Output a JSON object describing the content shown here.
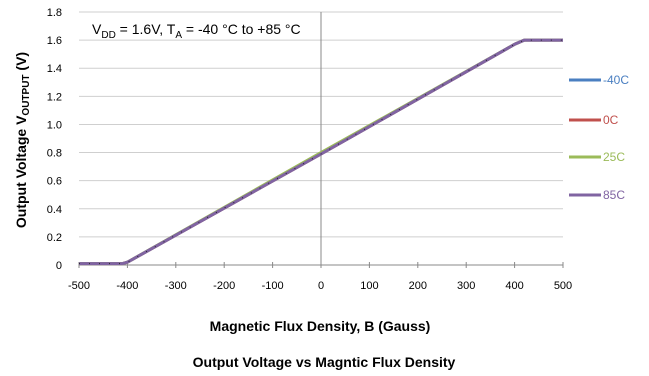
{
  "chart_data": {
    "type": "line",
    "title": "Output Voltage vs Magntic Flux Density",
    "xlabel": "Magnetic Flux Density, B (Gauss)",
    "ylabel": {
      "main": "Output Voltage V",
      "sub": "OUTPUT",
      "unit": " (V)"
    },
    "annotation": {
      "vdd_label": "V",
      "vdd_sub": "DD",
      "vdd_rest": " = 1.6V, T",
      "ta_sub": "A",
      "ta_rest": " = -40 °C to +85 °C"
    },
    "xlim": [
      -500,
      500
    ],
    "ylim": [
      0,
      1.8
    ],
    "x_ticks": [
      -500,
      -400,
      -300,
      -200,
      -100,
      0,
      100,
      200,
      300,
      400,
      500
    ],
    "y_ticks": [
      "0",
      "0.2",
      "0.4",
      "0.6",
      "0.8",
      "1.0",
      "1.2",
      "1.4",
      "1.6",
      "1.8"
    ],
    "y_tick_values": [
      0,
      0.2,
      0.4,
      0.6,
      0.8,
      1.0,
      1.2,
      1.4,
      1.6,
      1.8
    ],
    "grid": "horizontal",
    "legend_placement": "right",
    "series": [
      {
        "name": "-40C",
        "color": "#4a7fc1",
        "x": [
          -500,
          -410,
          -400,
          0,
          400,
          420,
          500
        ],
        "values": [
          0.01,
          0.01,
          0.02,
          0.79,
          1.57,
          1.6,
          1.6
        ]
      },
      {
        "name": "0C",
        "color": "#c0504d",
        "x": [
          -500,
          -410,
          -400,
          0,
          400,
          420,
          500
        ],
        "values": [
          0.01,
          0.01,
          0.02,
          0.79,
          1.57,
          1.6,
          1.6
        ]
      },
      {
        "name": "25C",
        "color": "#9bbb59",
        "x": [
          -500,
          -410,
          -400,
          0,
          400,
          420,
          500
        ],
        "values": [
          0.01,
          0.01,
          0.02,
          0.8,
          1.57,
          1.6,
          1.6
        ]
      },
      {
        "name": "85C",
        "color": "#8064a2",
        "x": [
          -500,
          -410,
          -400,
          0,
          400,
          420,
          500
        ],
        "values": [
          0.01,
          0.01,
          0.02,
          0.79,
          1.57,
          1.6,
          1.6
        ]
      }
    ]
  }
}
